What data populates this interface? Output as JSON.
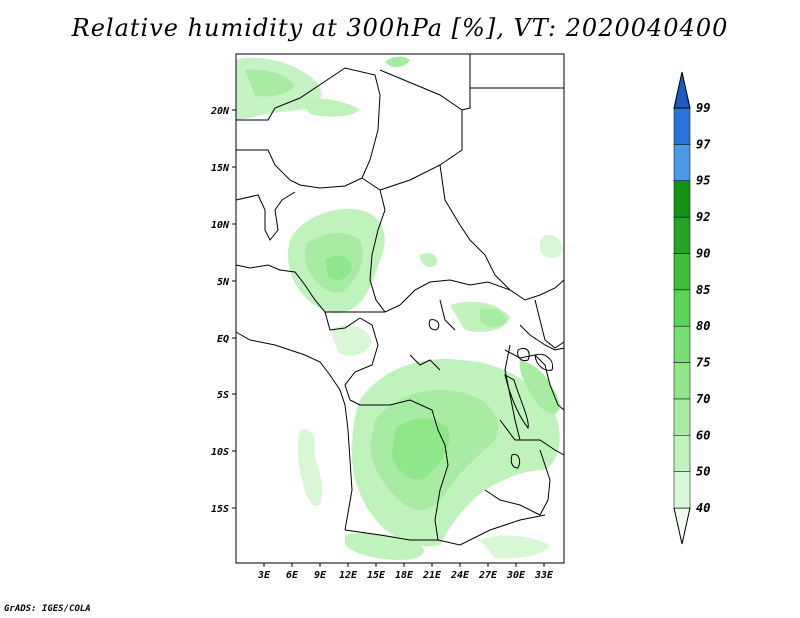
{
  "title": "Relative humidity at 300hPa [%], VT: 2020040400",
  "credit": "GrADS: IGES/COLA",
  "map": {
    "lat_labels": [
      "20N",
      "15N",
      "10N",
      "5N",
      "EQ",
      "5S",
      "10S",
      "15S"
    ],
    "lon_labels": [
      "3E",
      "6E",
      "9E",
      "12E",
      "15E",
      "18E",
      "21E",
      "24E",
      "27E",
      "30E",
      "33E"
    ]
  },
  "colorbar": {
    "levels": [
      "40",
      "50",
      "60",
      "70",
      "75",
      "80",
      "85",
      "90",
      "92",
      "95",
      "97",
      "99"
    ],
    "colors": [
      "#f0fcef",
      "#d8f7d5",
      "#c0f2bc",
      "#a8eca4",
      "#8fe78a",
      "#76e070",
      "#5ad455",
      "#3cc03a",
      "#24a424",
      "#139413",
      "#4a98e8",
      "#2872d8",
      "#1a5cc0"
    ]
  }
}
